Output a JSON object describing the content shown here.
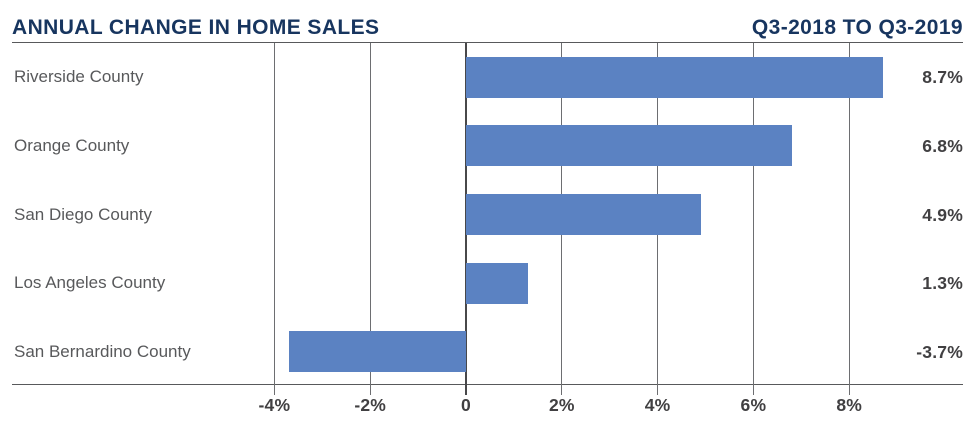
{
  "header": {
    "title": "ANNUAL CHANGE IN HOME SALES",
    "period": "Q3-2018 TO Q3-2019"
  },
  "chart_data": {
    "type": "bar",
    "orientation": "horizontal",
    "title": "ANNUAL CHANGE IN HOME SALES",
    "subtitle": "Q3-2018 TO Q3-2019",
    "categories": [
      "Riverside County",
      "Orange County",
      "San Diego County",
      "Los Angeles County",
      "San Bernardino County"
    ],
    "values": [
      8.7,
      6.8,
      4.9,
      1.3,
      -3.7
    ],
    "value_labels": [
      "8.7%",
      "6.8%",
      "4.9%",
      "1.3%",
      "-3.7%"
    ],
    "xlabel": "",
    "ylabel": "",
    "xlim": [
      -4,
      8
    ],
    "x_ticks": [
      {
        "value": -4,
        "label": "-4%"
      },
      {
        "value": -2,
        "label": "-2%"
      },
      {
        "value": 0,
        "label": "0"
      },
      {
        "value": 2,
        "label": "2%"
      },
      {
        "value": 4,
        "label": "4%"
      },
      {
        "value": 6,
        "label": "6%"
      },
      {
        "value": 8,
        "label": "8%"
      }
    ],
    "grid": "vertical-on",
    "legend": "none",
    "colors": {
      "bar": "#5B82C2",
      "title": "#17355F",
      "category_label": "#58595B",
      "value_label": "#414042",
      "gridline": "#6D6E71",
      "zero_line": "#48484A",
      "axis_line": "#58595B"
    }
  }
}
